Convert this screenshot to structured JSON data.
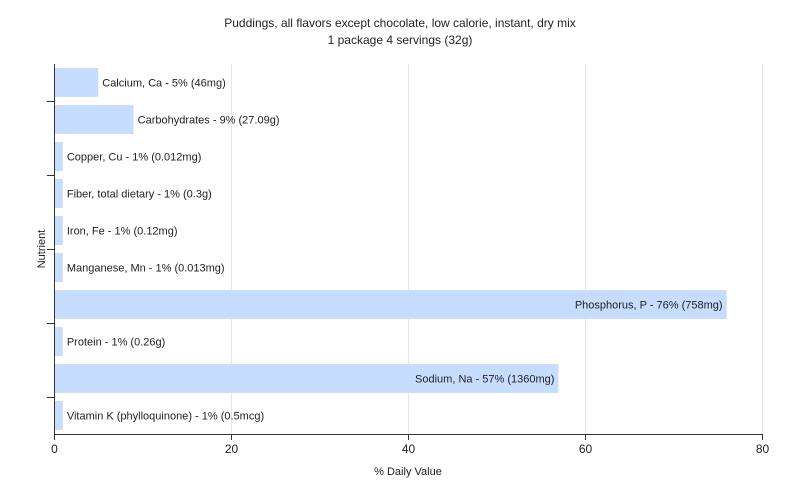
{
  "chart_data": {
    "type": "bar",
    "orientation": "horizontal",
    "title": "Puddings, all flavors except chocolate, low calorie, instant, dry mix",
    "subtitle": "1 package 4 servings (32g)",
    "xlabel": "% Daily Value",
    "ylabel": "Nutrient",
    "xlim": [
      0,
      80
    ],
    "xticks": [
      0,
      20,
      40,
      60,
      80
    ],
    "grid": "vertical",
    "bar_color": "#c6ddff",
    "categories": [
      "Calcium, Ca",
      "Carbohydrates",
      "Copper, Cu",
      "Fiber, total dietary",
      "Iron, Fe",
      "Manganese, Mn",
      "Phosphorus, P",
      "Protein",
      "Sodium, Na",
      "Vitamin K (phylloquinone)"
    ],
    "values": [
      5,
      9,
      1,
      1,
      1,
      1,
      76,
      1,
      57,
      1
    ],
    "labels": [
      "Calcium, Ca - 5% (46mg)",
      "Carbohydrates - 9% (27.09g)",
      "Copper, Cu - 1% (0.012mg)",
      "Fiber, total dietary - 1% (0.3g)",
      "Iron, Fe - 1% (0.12mg)",
      "Manganese, Mn - 1% (0.013mg)",
      "Phosphorus, P - 76% (758mg)",
      "Protein - 1% (0.26g)",
      "Sodium, Na - 57% (1360mg)",
      "Vitamin K (phylloquinone) - 1% (0.5mcg)"
    ]
  }
}
